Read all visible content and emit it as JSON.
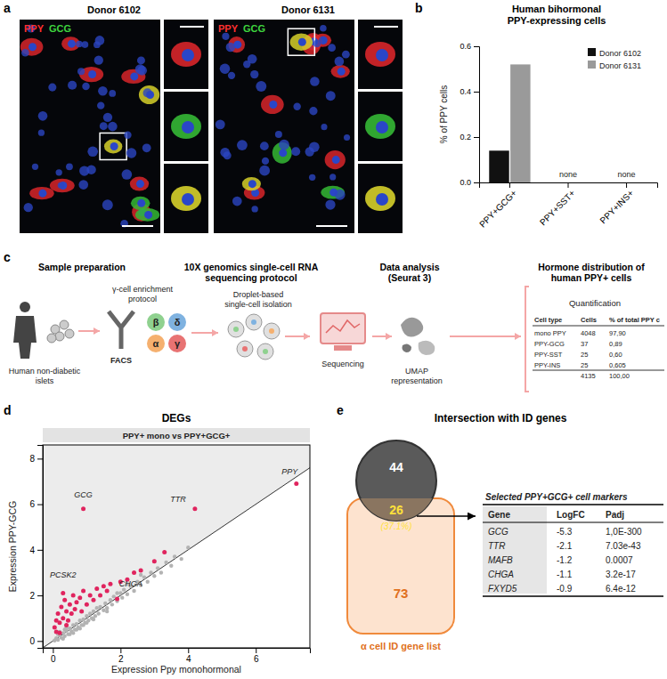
{
  "panel_labels": [
    "a",
    "b",
    "c",
    "d",
    "e"
  ],
  "panel_a": {
    "donors": [
      "Donor 6102",
      "Donor 6131"
    ],
    "stains": [
      "PPY",
      "GCG"
    ]
  },
  "chart_data": [
    {
      "type": "bar",
      "title": "Human bihormonal",
      "subtitle": "PPY-expressing cells",
      "y_label": "% of PPY cells",
      "categories": [
        "PPY+GCG+",
        "PPY+SST+",
        "PPY+INS+"
      ],
      "series": [
        {
          "name": "Donor 6102",
          "color": "#111111",
          "values": [
            0.14,
            null,
            null
          ]
        },
        {
          "name": "Donor 6131",
          "color": "#9a9a9a",
          "values": [
            0.52,
            null,
            null
          ]
        }
      ],
      "ylim": [
        0,
        0.6
      ],
      "yticks": [
        {
          "value": 0,
          "label": "0.0"
        },
        0.2,
        0.4,
        0.6
      ],
      "legend": "top-right",
      "annotations": [
        {
          "text": "none",
          "category": "PPY+SST+"
        },
        {
          "text": "none",
          "category": "PPY+INS+"
        }
      ]
    },
    {
      "type": "scatter",
      "title": "DEGs",
      "subtitle": "PPY+ mono vs PPY+GCG+",
      "x_label": "Expression Ppy monohormonal",
      "y_label": "Expression PPY-GCG",
      "xlim": [
        -0.3,
        7.6
      ],
      "ylim": [
        -0.3,
        8.6
      ],
      "xticks": [
        0,
        2,
        4,
        6
      ],
      "yticks": [
        0,
        2,
        4,
        6,
        8
      ],
      "series": [
        {
          "color": "#b3b3b3",
          "x": [
            0.05,
            0.1,
            0.15,
            0.2,
            0.25,
            0.3,
            0.35,
            0.4,
            0.45,
            0.5,
            0.55,
            0.6,
            0.65,
            0.7,
            0.75,
            0.8,
            0.85,
            0.9,
            0.95,
            1.0,
            1.05,
            1.1,
            1.15,
            1.2,
            1.25,
            1.3,
            1.35,
            1.4,
            1.5,
            1.55,
            1.6,
            1.7,
            1.75,
            1.8,
            1.9,
            2.0,
            2.05,
            2.1,
            2.2,
            2.3,
            2.4,
            2.5,
            2.6,
            2.7,
            2.8,
            2.9,
            3.0,
            3.1,
            3.2,
            3.35,
            3.5,
            3.6,
            3.8,
            4.0,
            0.3,
            0.5,
            0.7,
            0.9,
            0.2,
            0.4,
            1.2,
            1.6,
            0.6,
            0.8,
            0.15,
            0.35,
            1.0,
            2.2,
            2.6,
            1.9
          ],
          "values": [
            0.02,
            0.12,
            0.05,
            0.25,
            0.15,
            0.35,
            0.22,
            0.45,
            0.3,
            0.55,
            0.42,
            0.7,
            0.5,
            0.75,
            0.6,
            0.9,
            0.7,
            0.95,
            0.8,
            1.1,
            0.9,
            1.2,
            1.0,
            1.3,
            1.1,
            1.45,
            1.2,
            1.5,
            1.35,
            1.65,
            1.45,
            1.8,
            1.6,
            1.95,
            1.75,
            2.1,
            1.9,
            2.25,
            2.05,
            2.4,
            2.2,
            2.6,
            2.45,
            2.8,
            2.6,
            3.0,
            2.85,
            3.2,
            3.0,
            3.45,
            3.3,
            3.7,
            3.6,
            4.1,
            0.1,
            0.3,
            0.5,
            0.7,
            0.4,
            0.6,
            0.95,
            1.3,
            0.35,
            0.55,
            0.3,
            0.5,
            0.8,
            2.5,
            2.9,
            2.1
          ]
        },
        {
          "color": "#e0245e",
          "x": [
            0.9,
            4.2,
            7.2,
            0.3,
            1.9,
            0.05,
            0.1,
            0.15,
            0.2,
            0.25,
            0.3,
            0.35,
            0.4,
            0.45,
            0.5,
            0.55,
            0.6,
            0.65,
            0.7,
            0.8,
            0.85,
            0.9,
            1.0,
            1.1,
            1.2,
            1.3,
            1.4,
            1.5,
            1.6,
            1.7,
            2.0,
            2.2,
            2.4,
            2.6,
            3.0,
            3.3,
            0.1,
            0.2,
            0.4
          ],
          "values": [
            5.8,
            5.8,
            6.9,
            2.1,
            1.85,
            0.6,
            0.9,
            1.2,
            0.8,
            1.5,
            1.0,
            1.8,
            1.3,
            0.9,
            1.6,
            1.2,
            2.0,
            1.4,
            1.7,
            1.9,
            1.3,
            2.2,
            1.6,
            2.0,
            1.8,
            2.3,
            2.0,
            2.4,
            2.2,
            2.5,
            2.6,
            2.7,
            3.0,
            3.1,
            3.5,
            3.9,
            0.4,
            0.35,
            0.7
          ]
        }
      ],
      "annotations": [
        {
          "text": "GCG",
          "x": 0.9,
          "y": 6.3
        },
        {
          "text": "TTR",
          "x": 3.7,
          "y": 6.1
        },
        {
          "text": "PPY",
          "x": 7.0,
          "y": 7.3
        },
        {
          "text": "PCSK2",
          "x": 0.3,
          "y": 2.8
        },
        {
          "text": "CHGA",
          "x": 2.3,
          "y": 2.4
        }
      ]
    }
  ],
  "panel_c": {
    "headings": [
      [
        "Sample preparation"
      ],
      [
        "10X genomics single-cell RNA",
        "sequencing protocol"
      ],
      [
        "Data analysis",
        "(Seurat 3)"
      ],
      [
        "Hormone distribution of",
        "human PPY+ cells"
      ]
    ],
    "islets": [
      "Human non-diabetic",
      "islets"
    ],
    "enrichment": [
      "γ-cell enrichment",
      "protocol"
    ],
    "facs": "FACS",
    "cell_types": [
      "β",
      "δ",
      "α",
      "γ"
    ],
    "droplet": [
      "Droplet-based",
      "single-cell isolation"
    ],
    "sequencing": "Sequencing",
    "umap": [
      "UMAP",
      "representation"
    ],
    "quantification": "Quantification",
    "table": {
      "headers": [
        "Cell type",
        "Cells",
        "% of total PPY c"
      ],
      "rows": [
        [
          "mono PPY",
          "4048",
          "97,90"
        ],
        [
          "PPY-GCG",
          "37",
          "0,89"
        ],
        [
          "PPY-SST",
          "25",
          "0,60"
        ],
        [
          "PPY-INS",
          "25",
          "0,605"
        ],
        [
          null,
          "4135",
          "100,00"
        ]
      ]
    }
  },
  "panel_e": {
    "title": "Intersection with ID genes",
    "venn": {
      "left_only": "44",
      "overlap": "26",
      "overlap_pct": "(37.1%)",
      "right_only": "73",
      "set_label": "α cell ID gene list"
    },
    "table": {
      "title": "Selected PPY+GCG+ cell markers",
      "headers": [
        "Gene",
        "LogFC",
        "Padj"
      ],
      "rows": [
        [
          "GCG",
          "-5.3",
          "1,0E-300"
        ],
        [
          "TTR",
          "-2.1",
          "7.03e-43"
        ],
        [
          "MAFB",
          "-1.2",
          "0.0007"
        ],
        [
          "CHGA",
          "-1.1",
          "3.2e-17"
        ],
        [
          "FXYD5",
          "-0.9",
          "6.4e-12"
        ]
      ]
    }
  }
}
